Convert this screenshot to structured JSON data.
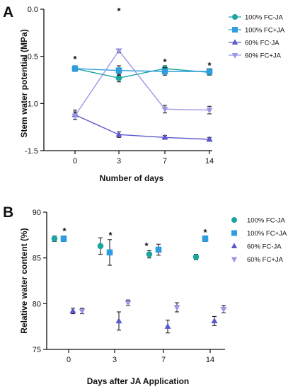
{
  "panel_labels": [
    "A",
    "B"
  ],
  "colors": {
    "100% FC-JA": "#1aa5a0",
    "100% FC+JA": "#2e9ee0",
    "60% FC-JA": "#5a57cf",
    "60% FC+JA": "#9a96e6"
  },
  "chart_data": [
    {
      "panel": "A",
      "type": "line",
      "xlabel": "Number of days",
      "ylabel": "Stem water potential (MPa)",
      "categories": [
        "0",
        "3",
        "7",
        "14"
      ],
      "ylim": [
        -1.5,
        0.0
      ],
      "yticks": [
        "0.0",
        "-0.5",
        "-1.0",
        "-1.5"
      ],
      "ytick_values": [
        0.0,
        -0.5,
        -1.0,
        -1.5
      ],
      "legend_position": "top-right",
      "series": [
        {
          "name": "100% FC-JA",
          "marker": "circle",
          "values": [
            -0.63,
            -0.73,
            -0.63,
            -0.67
          ],
          "errors": [
            0.03,
            0.04,
            0.03,
            0.03
          ]
        },
        {
          "name": "100% FC+JA",
          "marker": "square",
          "values": [
            -0.63,
            -0.65,
            -0.66,
            -0.66
          ],
          "errors": [
            0.02,
            0.05,
            0.04,
            0.03
          ]
        },
        {
          "name": "60% FC-JA",
          "marker": "triangle-up",
          "values": [
            -1.12,
            -1.33,
            -1.36,
            -1.38
          ],
          "errors": [
            0.05,
            0.03,
            0.02,
            0.02
          ]
        },
        {
          "name": "60% FC+JA",
          "marker": "triangle-down",
          "values": [
            -1.13,
            -0.44,
            -1.06,
            -1.07
          ],
          "errors": [
            0.04,
            0.02,
            0.04,
            0.04
          ]
        }
      ],
      "annotations": [
        "*",
        "*",
        "*",
        "*"
      ]
    },
    {
      "panel": "B",
      "type": "scatter",
      "xlabel": "Days after JA Application",
      "ylabel": "Relative water content (%)",
      "categories": [
        "0",
        "3",
        "7",
        "14"
      ],
      "ylim": [
        75,
        90
      ],
      "yticks": [
        "90",
        "85",
        "80",
        "75"
      ],
      "ytick_values": [
        90,
        85,
        80,
        75
      ],
      "legend_position": "top-right",
      "series": [
        {
          "name": "100% FC-JA",
          "marker": "circle",
          "values": [
            87.1,
            86.3,
            85.4,
            85.1
          ],
          "errors": [
            0.3,
            0.9,
            0.4,
            0.3
          ]
        },
        {
          "name": "100% FC+JA",
          "marker": "square",
          "values": [
            87.1,
            85.6,
            85.9,
            87.1
          ],
          "errors": [
            0.3,
            1.4,
            0.6,
            0.3
          ]
        },
        {
          "name": "60% FC-JA",
          "marker": "triangle-up",
          "values": [
            79.2,
            78.1,
            77.5,
            78.1
          ],
          "errors": [
            0.3,
            1.0,
            0.7,
            0.5
          ]
        },
        {
          "name": "60% FC+JA",
          "marker": "triangle-down",
          "values": [
            79.2,
            80.1,
            79.6,
            79.4
          ],
          "errors": [
            0.3,
            0.3,
            0.5,
            0.4
          ]
        }
      ],
      "annotations": [
        "*",
        "*",
        "*",
        "*"
      ]
    }
  ]
}
